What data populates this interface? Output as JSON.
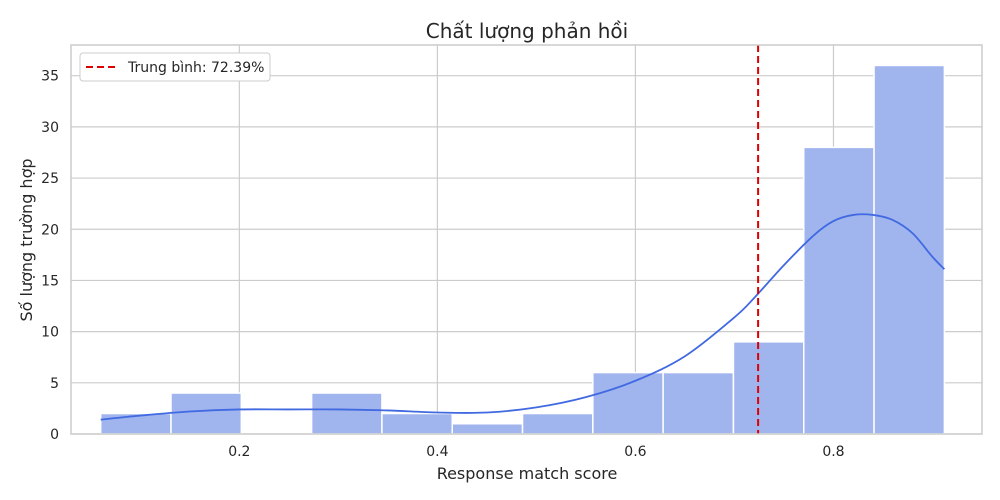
{
  "chart_data": {
    "type": "histogram",
    "title": "Chất lượng phản hồi",
    "xlabel": "Response match score",
    "ylabel": "Số lượng trường hợp",
    "xlim": [
      0.03,
      0.95
    ],
    "ylim": [
      0,
      38
    ],
    "xticks": [
      0.2,
      0.4,
      0.6,
      0.8
    ],
    "xtick_labels": [
      "0.2",
      "0.4",
      "0.6",
      "0.8"
    ],
    "yticks": [
      0,
      5,
      10,
      15,
      20,
      25,
      30,
      35
    ],
    "ytick_labels": [
      "0",
      "5",
      "10",
      "15",
      "20",
      "25",
      "30",
      "35"
    ],
    "grid": true,
    "bins": [
      {
        "start": 0.06,
        "end": 0.131,
        "count": 2
      },
      {
        "start": 0.131,
        "end": 0.202,
        "count": 4
      },
      {
        "start": 0.202,
        "end": 0.273,
        "count": 0
      },
      {
        "start": 0.273,
        "end": 0.344,
        "count": 4
      },
      {
        "start": 0.344,
        "end": 0.415,
        "count": 2
      },
      {
        "start": 0.415,
        "end": 0.486,
        "count": 1
      },
      {
        "start": 0.486,
        "end": 0.557,
        "count": 2
      },
      {
        "start": 0.557,
        "end": 0.628,
        "count": 6
      },
      {
        "start": 0.628,
        "end": 0.699,
        "count": 6
      },
      {
        "start": 0.699,
        "end": 0.77,
        "count": 9
      },
      {
        "start": 0.77,
        "end": 0.841,
        "count": 28
      },
      {
        "start": 0.841,
        "end": 0.912,
        "count": 36
      }
    ],
    "kde": {
      "x": [
        0.06,
        0.1,
        0.15,
        0.2,
        0.25,
        0.3,
        0.35,
        0.4,
        0.45,
        0.5,
        0.55,
        0.6,
        0.65,
        0.7,
        0.72,
        0.75,
        0.78,
        0.8,
        0.82,
        0.84,
        0.86,
        0.88,
        0.9,
        0.912
      ],
      "y": [
        1.4,
        1.8,
        2.2,
        2.4,
        2.4,
        2.4,
        2.3,
        2.1,
        2.1,
        2.6,
        3.6,
        5.2,
        7.6,
        11.4,
        13.3,
        16.5,
        19.4,
        20.8,
        21.4,
        21.4,
        20.9,
        19.6,
        17.3,
        16.1
      ]
    },
    "mean_line": {
      "x": 0.7239,
      "label": "Trung bình: 72.39%"
    },
    "colors": {
      "bar": "#a0b4ee",
      "bar_edge": "#ffffff",
      "kde": "#4169e1",
      "mean": "#dd0000",
      "grid": "#cccccc",
      "spine": "#cccccc"
    }
  }
}
